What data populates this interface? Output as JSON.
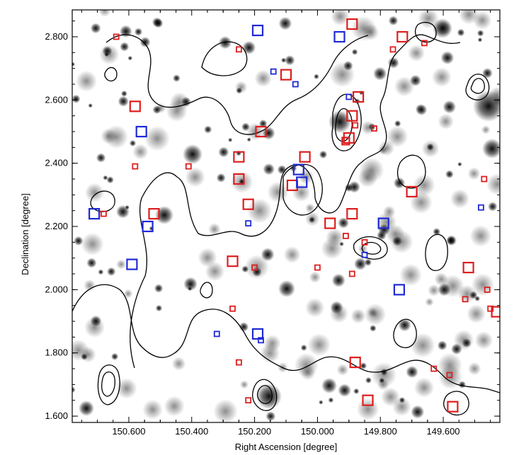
{
  "chart_data": {
    "type": "scatter",
    "title": "",
    "xlabel": "Right Ascension  [degree]",
    "ylabel": "Declination [degree]",
    "x_reversed": true,
    "xlim": [
      150.78,
      149.42
    ],
    "ylim": [
      1.58,
      2.885
    ],
    "xticks": [
      150.6,
      150.4,
      150.2,
      150.0,
      149.8,
      149.6
    ],
    "xtick_labels": [
      "150.600",
      "150.400",
      "150.200",
      "150.000",
      "149.800",
      "149.600"
    ],
    "yticks": [
      1.6,
      1.8,
      2.0,
      2.2,
      2.4,
      2.6,
      2.8
    ],
    "ytick_labels": [
      "1.600",
      "1.800",
      "2.000",
      "2.200",
      "2.400",
      "2.600",
      "2.800"
    ],
    "grid": false,
    "legend": "none",
    "colors": {
      "red": "#dd1f1f",
      "blue": "#1f2ad6",
      "contour": "#000000",
      "blob": "#000000"
    },
    "series": [
      {
        "color": "red",
        "marker": "square-open",
        "points": [
          {
            "x": 149.89,
            "y": 2.84,
            "s": "l"
          },
          {
            "x": 149.73,
            "y": 2.8,
            "s": "l"
          },
          {
            "x": 150.64,
            "y": 2.8,
            "s": "s"
          },
          {
            "x": 149.66,
            "y": 2.78,
            "s": "s"
          },
          {
            "x": 150.25,
            "y": 2.76,
            "s": "s"
          },
          {
            "x": 149.76,
            "y": 2.76,
            "s": "s"
          },
          {
            "x": 150.1,
            "y": 2.68,
            "s": "l"
          },
          {
            "x": 149.87,
            "y": 2.61,
            "s": "l"
          },
          {
            "x": 150.58,
            "y": 2.58,
            "s": "l"
          },
          {
            "x": 149.89,
            "y": 2.55,
            "s": "l"
          },
          {
            "x": 149.88,
            "y": 2.52,
            "s": "s"
          },
          {
            "x": 149.82,
            "y": 2.51,
            "s": "s"
          },
          {
            "x": 150.18,
            "y": 2.5,
            "s": "l"
          },
          {
            "x": 149.9,
            "y": 2.48,
            "s": "l"
          },
          {
            "x": 149.91,
            "y": 2.47,
            "s": "m"
          },
          {
            "x": 150.04,
            "y": 2.42,
            "s": "l"
          },
          {
            "x": 150.25,
            "y": 2.42,
            "s": "l"
          },
          {
            "x": 150.58,
            "y": 2.39,
            "s": "s"
          },
          {
            "x": 150.41,
            "y": 2.39,
            "s": "s"
          },
          {
            "x": 150.25,
            "y": 2.35,
            "s": "l"
          },
          {
            "x": 150.08,
            "y": 2.33,
            "s": "l"
          },
          {
            "x": 149.7,
            "y": 2.31,
            "s": "l"
          },
          {
            "x": 149.47,
            "y": 2.35,
            "s": "s"
          },
          {
            "x": 150.22,
            "y": 2.27,
            "s": "l"
          },
          {
            "x": 150.52,
            "y": 2.24,
            "s": "l"
          },
          {
            "x": 150.68,
            "y": 2.24,
            "s": "s"
          },
          {
            "x": 149.89,
            "y": 2.24,
            "s": "l"
          },
          {
            "x": 149.96,
            "y": 2.21,
            "s": "l"
          },
          {
            "x": 149.91,
            "y": 2.17,
            "s": "s"
          },
          {
            "x": 149.85,
            "y": 2.15,
            "s": "s"
          },
          {
            "x": 150.27,
            "y": 2.09,
            "s": "l"
          },
          {
            "x": 150.2,
            "y": 2.07,
            "s": "s"
          },
          {
            "x": 150.0,
            "y": 2.07,
            "s": "s"
          },
          {
            "x": 149.52,
            "y": 2.07,
            "s": "l"
          },
          {
            "x": 149.89,
            "y": 2.05,
            "s": "s"
          },
          {
            "x": 149.46,
            "y": 2.0,
            "s": "s"
          },
          {
            "x": 149.53,
            "y": 1.97,
            "s": "s"
          },
          {
            "x": 149.45,
            "y": 1.94,
            "s": "s"
          },
          {
            "x": 149.43,
            "y": 1.93,
            "s": "l"
          },
          {
            "x": 150.27,
            "y": 1.94,
            "s": "s"
          },
          {
            "x": 149.88,
            "y": 1.77,
            "s": "l"
          },
          {
            "x": 150.25,
            "y": 1.77,
            "s": "s"
          },
          {
            "x": 149.63,
            "y": 1.75,
            "s": "s"
          },
          {
            "x": 149.58,
            "y": 1.73,
            "s": "s"
          },
          {
            "x": 149.84,
            "y": 1.65,
            "s": "l"
          },
          {
            "x": 150.22,
            "y": 1.65,
            "s": "s"
          },
          {
            "x": 149.57,
            "y": 1.63,
            "s": "l"
          }
        ]
      },
      {
        "color": "blue",
        "marker": "square-open",
        "points": [
          {
            "x": 150.19,
            "y": 2.82,
            "s": "l"
          },
          {
            "x": 149.93,
            "y": 2.8,
            "s": "l"
          },
          {
            "x": 150.14,
            "y": 2.69,
            "s": "s"
          },
          {
            "x": 150.07,
            "y": 2.65,
            "s": "s"
          },
          {
            "x": 149.9,
            "y": 2.61,
            "s": "s"
          },
          {
            "x": 150.56,
            "y": 2.5,
            "s": "l"
          },
          {
            "x": 150.06,
            "y": 2.38,
            "s": "l"
          },
          {
            "x": 150.05,
            "y": 2.34,
            "s": "l"
          },
          {
            "x": 150.71,
            "y": 2.24,
            "s": "l"
          },
          {
            "x": 149.48,
            "y": 2.26,
            "s": "s"
          },
          {
            "x": 149.79,
            "y": 2.21,
            "s": "l"
          },
          {
            "x": 150.54,
            "y": 2.2,
            "s": "l"
          },
          {
            "x": 150.22,
            "y": 2.21,
            "s": "s"
          },
          {
            "x": 149.85,
            "y": 2.11,
            "s": "s"
          },
          {
            "x": 150.59,
            "y": 2.08,
            "s": "l"
          },
          {
            "x": 149.74,
            "y": 2.0,
            "s": "l"
          },
          {
            "x": 150.32,
            "y": 1.86,
            "s": "s"
          },
          {
            "x": 150.19,
            "y": 1.86,
            "s": "l"
          },
          {
            "x": 150.18,
            "y": 1.84,
            "s": "s"
          }
        ]
      }
    ]
  }
}
